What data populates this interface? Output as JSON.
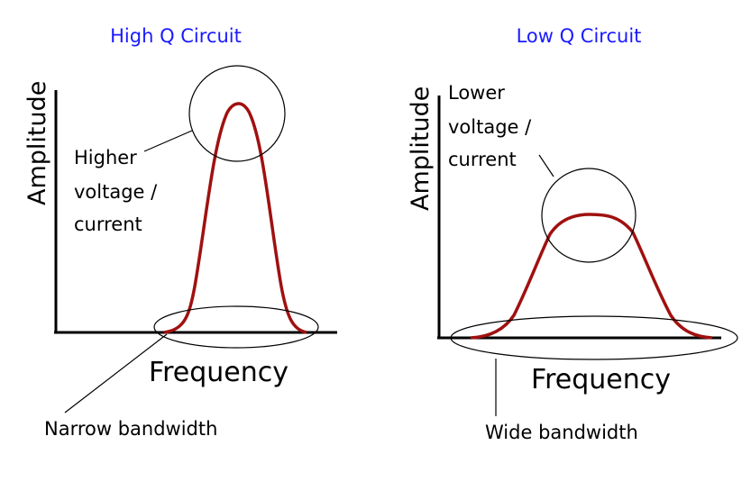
{
  "colors": {
    "title": "#1a1aff",
    "curve": "#a01010",
    "axis": "#000000",
    "outline": "#000000"
  },
  "left": {
    "title": "High Q Circuit",
    "y_axis_label": "Amplitude",
    "x_axis_label": "Frequency",
    "peak_label_lines": [
      "Higher",
      "voltage /",
      "current"
    ],
    "bandwidth_label": "Narrow bandwidth"
  },
  "right": {
    "title": "Low Q Circuit",
    "y_axis_label": "Amplitude",
    "x_axis_label": "Frequency",
    "peak_label_lines": [
      "Lower",
      "voltage /",
      "current"
    ],
    "bandwidth_label": "Wide bandwidth"
  }
}
